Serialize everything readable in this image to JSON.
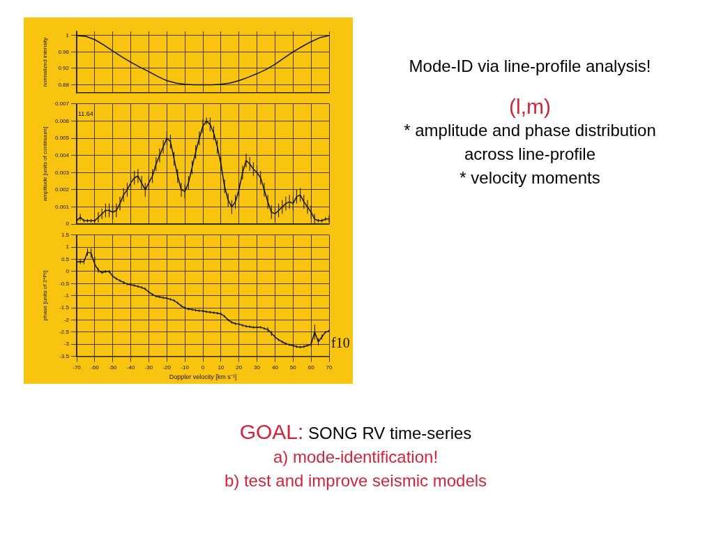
{
  "chart_data": [
    {
      "type": "line",
      "ylabel": "normalized intensity",
      "color": "#111111",
      "marker": "none",
      "line_style": "solid",
      "grid": true,
      "tick_labels": "y",
      "xlim": [
        -70,
        70
      ],
      "xticks": [
        -70,
        -60,
        -50,
        -40,
        -30,
        -20,
        -10,
        0,
        10,
        20,
        30,
        40,
        50,
        60,
        70
      ],
      "ylim": [
        0.86,
        1.01
      ],
      "yticks": [
        0.88,
        0.92,
        0.96,
        1
      ],
      "x": [
        -70,
        -65,
        -60,
        -55,
        -50,
        -45,
        -40,
        -35,
        -30,
        -25,
        -20,
        -15,
        -10,
        -5,
        0,
        5,
        10,
        15,
        20,
        25,
        30,
        35,
        40,
        45,
        50,
        55,
        60,
        65,
        70
      ],
      "values": [
        1.0,
        0.998,
        0.99,
        0.977,
        0.962,
        0.948,
        0.935,
        0.923,
        0.912,
        0.9,
        0.89,
        0.884,
        0.881,
        0.88,
        0.88,
        0.88,
        0.881,
        0.884,
        0.89,
        0.898,
        0.907,
        0.917,
        0.93,
        0.945,
        0.96,
        0.973,
        0.985,
        0.995,
        1.0
      ]
    },
    {
      "type": "line",
      "ylabel": "amplitude [units of continuum]",
      "color": "#111111",
      "marker": "none",
      "line_style": "solid",
      "grid": true,
      "tick_labels": "y",
      "xlim": [
        -70,
        70
      ],
      "xticks": [
        -70,
        -60,
        -50,
        -40,
        -30,
        -20,
        -10,
        0,
        10,
        20,
        30,
        40,
        50,
        60,
        70
      ],
      "ylim": [
        0,
        0.007
      ],
      "yticks": [
        0,
        0.001,
        0.002,
        0.003,
        0.004,
        0.005,
        0.006,
        0.007
      ],
      "annotations": [
        "11.64"
      ],
      "x": [
        -70,
        -68,
        -66,
        -64,
        -62,
        -60,
        -58,
        -56,
        -54,
        -52,
        -50,
        -48,
        -46,
        -44,
        -42,
        -40,
        -38,
        -36,
        -34,
        -32,
        -30,
        -28,
        -26,
        -24,
        -22,
        -20,
        -18,
        -16,
        -14,
        -12,
        -10,
        -8,
        -6,
        -4,
        -2,
        0,
        2,
        4,
        6,
        8,
        10,
        12,
        14,
        16,
        18,
        20,
        22,
        24,
        26,
        28,
        30,
        32,
        34,
        36,
        38,
        40,
        42,
        44,
        46,
        48,
        50,
        52,
        54,
        56,
        58,
        60,
        62,
        64,
        66,
        68,
        70
      ],
      "values": [
        0.0002,
        0.0004,
        0.0002,
        0.0002,
        0.0002,
        0.0002,
        0.0004,
        0.0006,
        0.0008,
        0.0008,
        0.0007,
        0.0008,
        0.0012,
        0.0017,
        0.002,
        0.0024,
        0.0027,
        0.0028,
        0.0024,
        0.002,
        0.0024,
        0.0028,
        0.0035,
        0.004,
        0.0045,
        0.005,
        0.0048,
        0.0038,
        0.0028,
        0.002,
        0.0019,
        0.0024,
        0.0033,
        0.0042,
        0.005,
        0.0057,
        0.006,
        0.0058,
        0.0053,
        0.0045,
        0.0035,
        0.0022,
        0.0014,
        0.001,
        0.0013,
        0.002,
        0.003,
        0.0037,
        0.0035,
        0.0032,
        0.003,
        0.0027,
        0.002,
        0.0013,
        0.0007,
        0.0006,
        0.0008,
        0.001,
        0.0012,
        0.0013,
        0.0012,
        0.0016,
        0.0017,
        0.0013,
        0.001,
        0.0007,
        0.0003,
        0.0002,
        0.0002,
        0.0003,
        0.0003
      ],
      "errors": [
        0.0001,
        0.0002,
        0.0001,
        0.0001,
        0.0001,
        0.0001,
        0.0003,
        0.0003,
        0.0004,
        0.0004,
        0.0004,
        0.0004,
        0.0004,
        0.0004,
        0.0004,
        0.0004,
        0.0004,
        0.0004,
        0.0004,
        0.0004,
        0.0004,
        0.0004,
        0.0004,
        0.0004,
        0.0004,
        0.0004,
        0.0004,
        0.0004,
        0.0004,
        0.0004,
        0.0004,
        0.0004,
        0.0004,
        0.0004,
        0.0004,
        0.0004,
        0.0002,
        0.0004,
        0.0004,
        0.0004,
        0.0004,
        0.0004,
        0.0004,
        0.0004,
        0.0004,
        0.0004,
        0.0004,
        0.0004,
        0.0004,
        0.0004,
        0.0004,
        0.0004,
        0.0004,
        0.0004,
        0.0004,
        0.0004,
        0.0004,
        0.0004,
        0.0004,
        0.0004,
        0.0004,
        0.0004,
        0.0004,
        0.0004,
        0.0004,
        0.0004,
        0.0003,
        0.0001,
        0.0001,
        0.0001,
        0.0002
      ]
    },
    {
      "type": "line",
      "ylabel": "phase [units of 2*PI]",
      "xlabel": "Doppler velocity [km s⁻¹]",
      "color": "#111111",
      "marker": "none",
      "line_style": "solid",
      "grid": true,
      "xlim": [
        -70,
        70
      ],
      "xticks": [
        -70,
        -60,
        -50,
        -40,
        -30,
        -20,
        -10,
        0,
        10,
        20,
        30,
        40,
        50,
        60,
        70
      ],
      "ylim": [
        -3.5,
        1.5
      ],
      "yticks": [
        -3.5,
        -3,
        -2.5,
        -2,
        -1.5,
        -1,
        -0.5,
        0,
        0.5,
        1,
        1.5
      ],
      "annotations": [
        "f10"
      ],
      "x": [
        -70,
        -68,
        -66,
        -64,
        -62,
        -60,
        -58,
        -56,
        -54,
        -52,
        -50,
        -48,
        -46,
        -44,
        -42,
        -40,
        -38,
        -36,
        -34,
        -32,
        -30,
        -28,
        -26,
        -24,
        -22,
        -20,
        -18,
        -16,
        -14,
        -12,
        -10,
        -8,
        -6,
        -4,
        -2,
        0,
        2,
        4,
        6,
        8,
        10,
        12,
        14,
        16,
        18,
        20,
        22,
        24,
        26,
        28,
        30,
        32,
        34,
        36,
        38,
        40,
        42,
        44,
        46,
        48,
        50,
        52,
        54,
        56,
        58,
        60,
        62,
        64,
        66,
        68,
        70
      ],
      "values": [
        0.4,
        0.4,
        0.4,
        0.8,
        0.75,
        0.3,
        0.05,
        -0.05,
        0,
        0,
        -0.2,
        -0.3,
        -0.38,
        -0.45,
        -0.52,
        -0.55,
        -0.58,
        -0.62,
        -0.66,
        -0.72,
        -0.85,
        -0.95,
        -1.02,
        -1.05,
        -1.08,
        -1.1,
        -1.15,
        -1.2,
        -1.3,
        -1.42,
        -1.5,
        -1.55,
        -1.57,
        -1.6,
        -1.62,
        -1.63,
        -1.66,
        -1.68,
        -1.7,
        -1.72,
        -1.75,
        -1.85,
        -2,
        -2.1,
        -2.15,
        -2.17,
        -2.22,
        -2.26,
        -2.28,
        -2.3,
        -2.3,
        -2.3,
        -2.35,
        -2.4,
        -2.55,
        -2.7,
        -2.82,
        -2.9,
        -2.98,
        -3.02,
        -3.05,
        -3.1,
        -3.12,
        -3.1,
        -3.05,
        -3,
        -2.5,
        -2.9,
        -2.7,
        -2.5,
        -2.45
      ],
      "errors": [
        0.75,
        0.1,
        0.1,
        0.15,
        0.2,
        0.3,
        0.1,
        0.05,
        0.05,
        0.05,
        0.05,
        0.05,
        0.05,
        0.05,
        0.05,
        0.05,
        0.05,
        0.05,
        0.05,
        0.05,
        0.05,
        0.05,
        0.05,
        0.05,
        0.05,
        0.05,
        0.05,
        0.05,
        0.05,
        0.05,
        0.05,
        0.05,
        0.05,
        0.05,
        0.05,
        0.05,
        0.05,
        0.05,
        0.05,
        0.05,
        0.05,
        0.05,
        0.05,
        0.05,
        0.05,
        0.05,
        0.05,
        0.05,
        0.05,
        0.05,
        0.05,
        0.05,
        0.05,
        0.1,
        0.1,
        0.1,
        0.05,
        0.05,
        0.05,
        0.05,
        0.05,
        0.05,
        0.05,
        0.05,
        0.05,
        0.1,
        0.3,
        0.15,
        0.1,
        0.05,
        0.05
      ]
    },
    {
      "type": "other",
      "title": "Mode-ID via line-profile analysis!",
      "subtitle": "(l,m)",
      "annotations": [
        "* amplitude and phase distribution across line-profile",
        "* velocity moments"
      ]
    },
    {
      "type": "other",
      "title": "GOAL:",
      "subtitle": "SONG RV time-series",
      "annotations": [
        "a)  mode-identification!",
        "b) test and improve seismic models"
      ]
    }
  ]
}
